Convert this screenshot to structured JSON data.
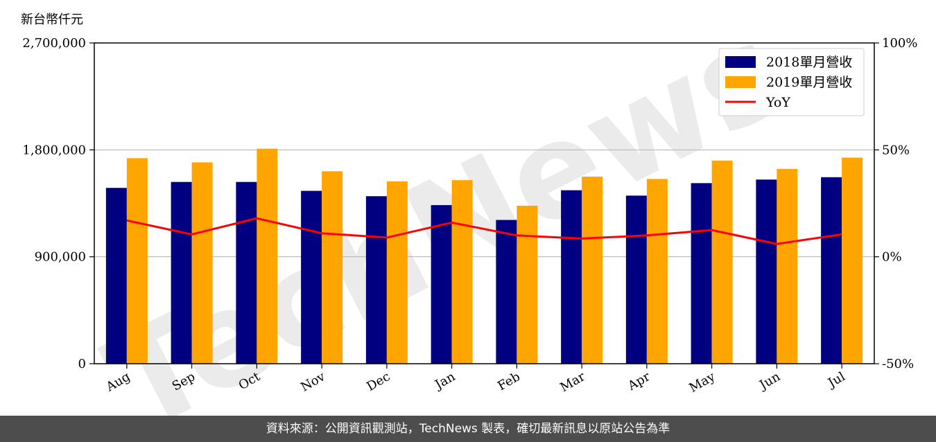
{
  "unit_label": "新台幣仟元",
  "watermark": "TechNews",
  "footer": "資料來源：公開資訊觀測站，TechNews 製表，確切最新訊息以原站公告為準",
  "colors": {
    "series_2018": "#000080",
    "series_2019": "#ffa500",
    "yoy": "#ff0000",
    "grid": "#b0b0b0",
    "watermark": "#e00000",
    "footer_bg": "#4d4d4d"
  },
  "chart_data": {
    "type": "bar",
    "categories": [
      "Aug",
      "Sep",
      "Oct",
      "Nov",
      "Dec",
      "Jan",
      "Feb",
      "Mar",
      "Apr",
      "May",
      "Jun",
      "Jul"
    ],
    "series": [
      {
        "name": "2018單月營收",
        "type": "bar",
        "axis": "left",
        "values": [
          1480000,
          1530000,
          1530000,
          1455000,
          1410000,
          1335000,
          1210000,
          1460000,
          1415000,
          1520000,
          1550000,
          1570000
        ]
      },
      {
        "name": "2019單月營收",
        "type": "bar",
        "axis": "left",
        "values": [
          1730000,
          1695000,
          1810000,
          1620000,
          1535000,
          1545000,
          1330000,
          1575000,
          1555000,
          1710000,
          1640000,
          1735000
        ]
      },
      {
        "name": "YoY",
        "type": "line",
        "axis": "right",
        "values": [
          17,
          10.5,
          18,
          11,
          9,
          16,
          10,
          8.5,
          10,
          12.5,
          6,
          10.5
        ]
      }
    ],
    "ylim_left": [
      0,
      2700000
    ],
    "yticks_left": [
      {
        "value": 0,
        "label": "0"
      },
      {
        "value": 900000,
        "label": "900,000"
      },
      {
        "value": 1800000,
        "label": "1,800,000"
      },
      {
        "value": 2700000,
        "label": "2,700,000"
      }
    ],
    "ylim_right": [
      -50,
      100
    ],
    "yticks_right": [
      {
        "value": -50,
        "label": "-50%"
      },
      {
        "value": 0,
        "label": "0%"
      },
      {
        "value": 50,
        "label": "50%"
      },
      {
        "value": 100,
        "label": "100%"
      }
    ],
    "grid": "horizontal",
    "legend_position": "top-right"
  }
}
